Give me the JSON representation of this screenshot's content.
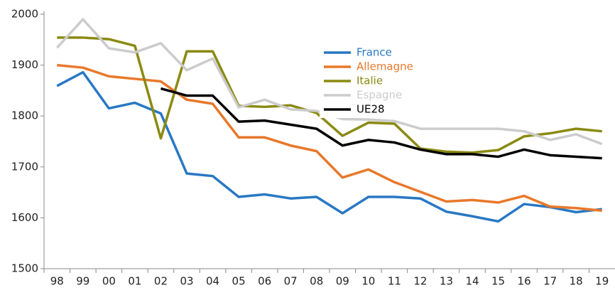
{
  "chart_data": {
    "type": "line",
    "categories": [
      "98",
      "99",
      "00",
      "01",
      "02",
      "03",
      "04",
      "05",
      "06",
      "07",
      "08",
      "09",
      "10",
      "11",
      "12",
      "13",
      "14",
      "15",
      "16",
      "17",
      "18",
      "19"
    ],
    "series": [
      {
        "name": "France",
        "color": "#2878c3",
        "values": [
          1859,
          1886,
          1815,
          1826,
          1805,
          1687,
          1682,
          1641,
          1646,
          1638,
          1641,
          1609,
          1641,
          1641,
          1638,
          1612,
          1603,
          1593,
          1627,
          1621,
          1611,
          1617
        ]
      },
      {
        "name": "Allemagne",
        "color": "#e8782a",
        "values": [
          1900,
          1895,
          1878,
          1873,
          1868,
          1832,
          1824,
          1758,
          1758,
          1742,
          1731,
          1679,
          1695,
          1670,
          1651,
          1632,
          1635,
          1630,
          1643,
          1622,
          1619,
          1614
        ]
      },
      {
        "name": "Italie",
        "color": "#8a8a12",
        "values": [
          1954,
          1954,
          1951,
          1938,
          1756,
          1927,
          1927,
          1820,
          1818,
          1821,
          1806,
          1761,
          1787,
          1785,
          1736,
          1730,
          1728,
          1733,
          1760,
          1766,
          1775,
          1770
        ]
      },
      {
        "name": "Espagne",
        "color": "#cccccc",
        "values": [
          1934,
          1990,
          1933,
          1925,
          1943,
          1890,
          1913,
          1817,
          1832,
          1813,
          1810,
          1794,
          1793,
          1790,
          1775,
          1775,
          1775,
          1775,
          1770,
          1753,
          1764,
          1745
        ]
      },
      {
        "name": "UE28",
        "color": "#000000",
        "values": [
          null,
          null,
          null,
          null,
          1854,
          1840,
          1840,
          1789,
          1791,
          1783,
          1775,
          1742,
          1753,
          1748,
          1734,
          1725,
          1725,
          1720,
          1734,
          1723,
          1720,
          1717
        ]
      }
    ],
    "ylim": [
      1500,
      2000
    ],
    "yticks": [
      1500,
      1600,
      1700,
      1800,
      1900,
      2000
    ],
    "grid": false
  }
}
